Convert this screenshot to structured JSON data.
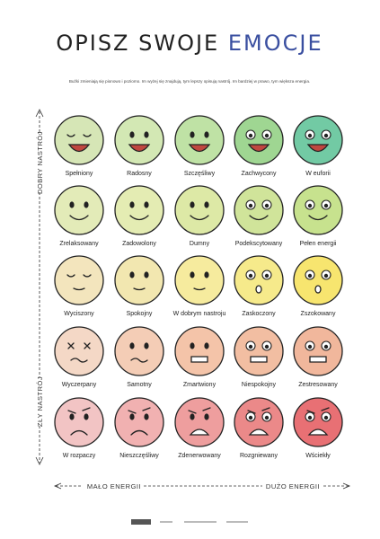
{
  "title": {
    "part1": "OPISZ SWOJE",
    "part2": "EMOCJE"
  },
  "subtitle": "Buźki zmieniają się pionowo i poziomo. Im wyżej się znajdują, tym lepszy opisują nastrój. Im bardziej w prawo, tym większa energia.",
  "axes": {
    "mood_good": "DOBRY NASTRÓJ",
    "mood_bad": "ZŁY NASTRÓJ",
    "energy_low": "MAŁO ENERGII",
    "energy_high": "DUŻO ENERGII"
  },
  "grid": {
    "rows": [
      [
        "Spełniony",
        "Radosny",
        "Szczęśliwy",
        "Zachwycony",
        "W euforii"
      ],
      [
        "Zrelaksowany",
        "Zadowolony",
        "Dumny",
        "Podekscytowany",
        "Pełen energii"
      ],
      [
        "Wyciszony",
        "Spokojny",
        "W dobrym nastroju",
        "Zaskoczony",
        "Zszokowany"
      ],
      [
        "Wyczerpany",
        "Samotny",
        "Zmartwiony",
        "Niespokojny",
        "Zestresowany"
      ],
      [
        "W rozpaczy",
        "Nieszczęśliwy",
        "Zdenerwowany",
        "Rozgniewany",
        "Wściekły"
      ]
    ]
  }
}
